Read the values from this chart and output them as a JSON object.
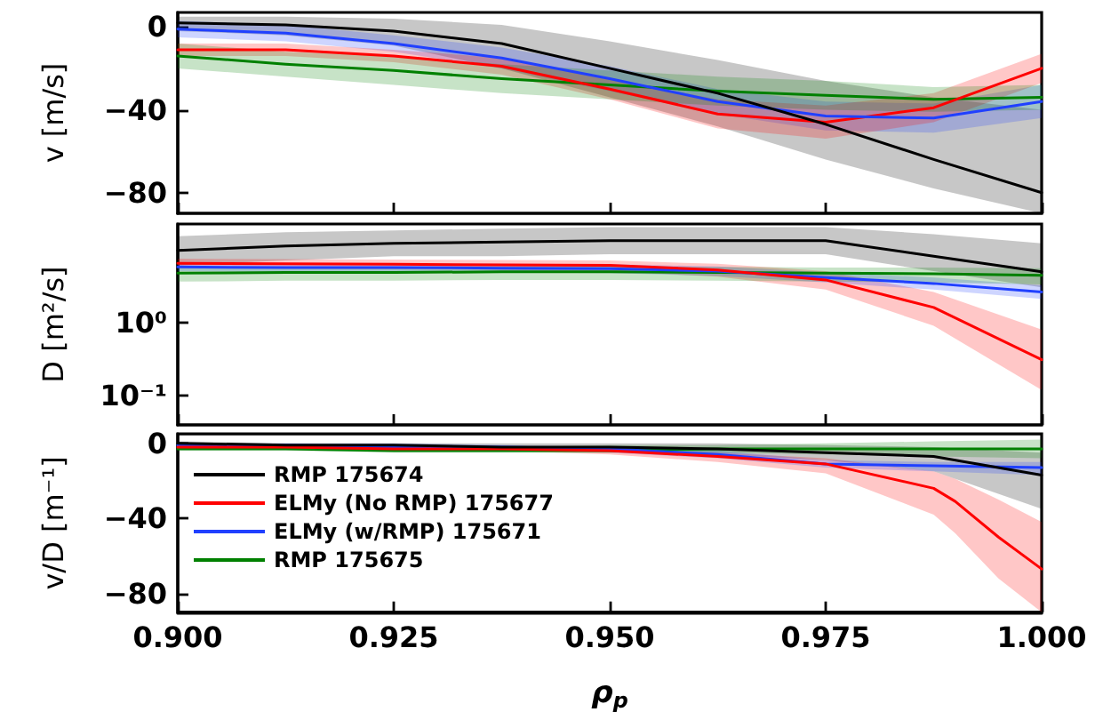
{
  "chart_data": [
    {
      "type": "line",
      "ylabel": "v [m/s]",
      "x": [
        0.9,
        0.9125,
        0.925,
        0.9375,
        0.95,
        0.9625,
        0.975,
        0.9875,
        1.0
      ],
      "xlim": [
        0.9,
        1.0
      ],
      "xticks": [
        0.9,
        0.925,
        0.95,
        0.975,
        1.0
      ],
      "ylim": [
        -90,
        7
      ],
      "yticks": [
        {
          "value": 0,
          "label": "0"
        },
        {
          "value": -40,
          "label": "−40"
        },
        {
          "value": -80,
          "label": "−80"
        }
      ],
      "tick_labels": "y",
      "grid": false,
      "legend": false,
      "series": [
        {
          "color": "#000000",
          "values": [
            2,
            1,
            -2,
            -8,
            -20,
            -32,
            -47,
            -64,
            -80
          ],
          "lower": [
            -2,
            -4,
            -9,
            -20,
            -34,
            -48,
            -64,
            -78,
            -90
          ],
          "upper": [
            5,
            5,
            4,
            1,
            -7,
            -16,
            -26,
            -34,
            -40
          ]
        },
        {
          "color": "#2040ff",
          "values": [
            -1,
            -3,
            -8,
            -15,
            -25,
            -36,
            -43,
            -44,
            -36
          ],
          "lower": [
            -5,
            -7,
            -12,
            -20,
            -31,
            -42,
            -50,
            -51,
            -44
          ],
          "upper": [
            3,
            1,
            -4,
            -10,
            -19,
            -30,
            -36,
            -37,
            -28
          ]
        },
        {
          "color": "#ff0000",
          "values": [
            -11,
            -11,
            -14,
            -19,
            -30,
            -42,
            -46,
            -39,
            -20
          ],
          "lower": [
            -14,
            -14,
            -17,
            -23,
            -35,
            -49,
            -54,
            -46,
            -27
          ],
          "upper": [
            -8,
            -8,
            -11,
            -15,
            -25,
            -35,
            -38,
            -32,
            -13
          ]
        },
        {
          "color": "#008000",
          "values": [
            -14,
            -18,
            -21,
            -25,
            -28,
            -31,
            -33,
            -35,
            -34
          ],
          "lower": [
            -20,
            -24,
            -28,
            -32,
            -35,
            -38,
            -40,
            -41,
            -40
          ],
          "upper": [
            -8,
            -12,
            -14,
            -18,
            -21,
            -24,
            -26,
            -29,
            -28
          ]
        }
      ]
    },
    {
      "type": "line",
      "ylabel": "D [m²/s]",
      "log": "y",
      "x": [
        0.9,
        0.9125,
        0.925,
        0.9375,
        0.95,
        0.9625,
        0.975,
        0.9875,
        1.0
      ],
      "xlim": [
        0.9,
        1.0
      ],
      "xticks": [
        0.9,
        0.925,
        0.95,
        0.975,
        1.0
      ],
      "ylim": [
        0.04,
        22
      ],
      "yticks": [
        {
          "value": 0.1,
          "label": "10⁻¹"
        },
        {
          "value": 1,
          "label": "10⁰"
        }
      ],
      "tick_labels": "y",
      "grid": false,
      "legend": false,
      "series": [
        {
          "color": "#000000",
          "values": [
            9.6,
            11,
            12,
            12.5,
            13,
            13,
            13,
            8,
            4.9
          ],
          "lower": [
            6,
            7,
            8,
            8,
            8.5,
            8.5,
            8.5,
            5,
            3
          ],
          "upper": [
            15,
            17,
            18,
            19,
            20,
            20,
            20,
            16,
            12
          ]
        },
        {
          "color": "#ff0000",
          "values": [
            6.4,
            6.3,
            6.2,
            6.1,
            6,
            5.2,
            3.8,
            1.6,
            0.31
          ],
          "lower": [
            5.5,
            5.4,
            5.3,
            5.2,
            5,
            4.2,
            2.8,
            0.9,
            0.12
          ],
          "upper": [
            7.4,
            7.3,
            7.2,
            7.1,
            7,
            6.3,
            5,
            2.6,
            0.8
          ]
        },
        {
          "color": "#2040ff",
          "values": [
            5.7,
            5.6,
            5.6,
            5.5,
            5.4,
            5,
            4.1,
            3.4,
            2.6
          ],
          "lower": [
            5,
            4.9,
            4.9,
            4.8,
            4.7,
            4.3,
            3.5,
            2.8,
            2.1
          ],
          "upper": [
            6.5,
            6.4,
            6.4,
            6.3,
            6.2,
            5.8,
            4.8,
            4.1,
            3.2
          ]
        },
        {
          "color": "#008000",
          "values": [
            4.7,
            4.8,
            4.8,
            4.9,
            4.9,
            4.8,
            4.7,
            4.6,
            4.4
          ],
          "lower": [
            3.6,
            3.7,
            3.7,
            3.8,
            3.8,
            3.7,
            3.6,
            3.5,
            3.3
          ],
          "upper": [
            5.6,
            5.7,
            5.7,
            5.8,
            5.8,
            5.7,
            5.6,
            5.6,
            5.5
          ]
        }
      ]
    },
    {
      "type": "line",
      "ylabel": "v/D [m⁻¹]",
      "xlabel": "ρ$_{p}$",
      "x": [
        0.9,
        0.9125,
        0.925,
        0.9375,
        0.95,
        0.9625,
        0.975,
        0.9875,
        1.0
      ],
      "xlim": [
        0.9,
        1.0
      ],
      "xticks": [
        {
          "value": 0.9,
          "label": "0.900"
        },
        {
          "value": 0.925,
          "label": "0.925"
        },
        {
          "value": 0.95,
          "label": "0.950"
        },
        {
          "value": 0.975,
          "label": "0.975"
        },
        {
          "value": 1.0,
          "label": "1.000"
        }
      ],
      "ylim": [
        -90,
        5
      ],
      "yticks": [
        {
          "value": 0,
          "label": "0"
        },
        {
          "value": -40,
          "label": "−40"
        },
        {
          "value": -80,
          "label": "−80"
        }
      ],
      "grid": false,
      "legend": "top left",
      "series": [
        {
          "name": "RMP 175674",
          "color": "#000000",
          "values": [
            0,
            -1,
            -1,
            -2,
            -2,
            -3,
            -5,
            -7,
            -17
          ],
          "lower": [
            -1,
            -2,
            -2,
            -3,
            -4,
            -6,
            -9,
            -15,
            -35
          ],
          "upper": [
            1,
            0,
            0,
            0,
            0,
            0,
            -1,
            -2,
            -5
          ]
        },
        {
          "name": "ELMy (No RMP) 175677",
          "color": "#ff0000",
          "x": [
            0.9,
            0.9125,
            0.925,
            0.9375,
            0.95,
            0.9625,
            0.975,
            0.9875,
            0.99,
            0.995,
            1.0
          ],
          "values": [
            -2,
            -2,
            -3,
            -3,
            -4,
            -7,
            -11,
            -24,
            -31,
            -50,
            -67
          ],
          "lower": [
            -2,
            -3,
            -3,
            -4,
            -6,
            -10,
            -16,
            -38,
            -48,
            -72,
            -90
          ],
          "upper": [
            0,
            -1,
            -1,
            -2,
            -3,
            -5,
            -8,
            -15,
            -19,
            -30,
            -42
          ]
        },
        {
          "name": "ELMy (w/RMP) 175671",
          "color": "#2040ff",
          "values": [
            -1,
            -1,
            -2,
            -2,
            -3,
            -6,
            -11,
            -12,
            -13
          ],
          "lower": [
            -2,
            -2,
            -3,
            -4,
            -5,
            -8,
            -13,
            -15,
            -17
          ],
          "upper": [
            0,
            0,
            0,
            -1,
            -2,
            -4,
            -9,
            -10,
            -10
          ]
        },
        {
          "name": "RMP 175675",
          "color": "#008000",
          "values": [
            -3,
            -3,
            -4,
            -4,
            -4,
            -3,
            -3,
            -3,
            -3
          ],
          "lower": [
            -4,
            -4,
            -5,
            -5,
            -5,
            -5,
            -6,
            -7,
            -8
          ],
          "upper": [
            -1,
            -1,
            -1,
            -2,
            -1,
            -1,
            0,
            1,
            2
          ]
        }
      ]
    }
  ]
}
